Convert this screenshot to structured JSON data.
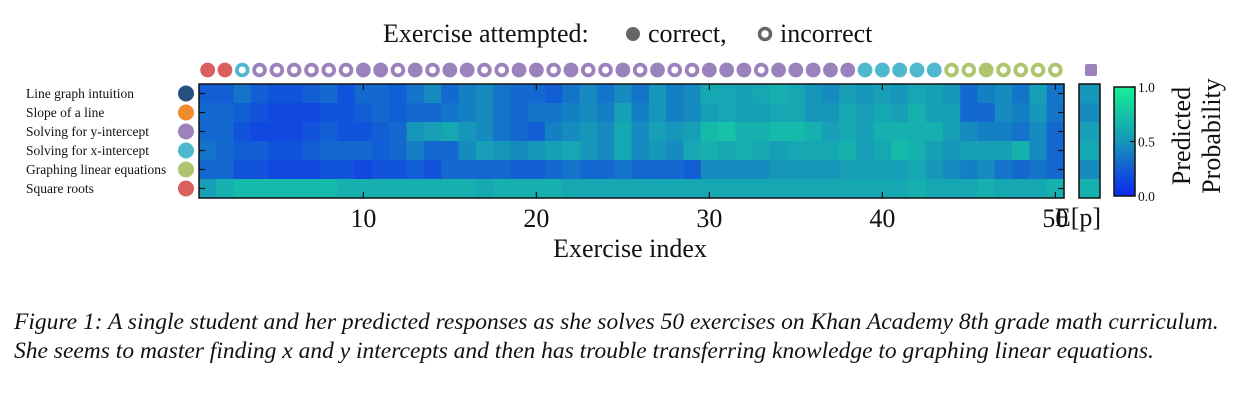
{
  "chart_data": {
    "type": "heatmap",
    "title_prefix": "Exercise attempted:",
    "legend": [
      {
        "label": "correct,",
        "style": "filled"
      },
      {
        "label": "incorrect",
        "style": "ring"
      }
    ],
    "xlabel": "Exercise index",
    "x_ticks": [
      10,
      20,
      30,
      40,
      50
    ],
    "x_range": [
      1,
      50
    ],
    "expected_column_label": "E[p]",
    "colorbar": {
      "label_line1": "Predicted",
      "label_line2": "Probability",
      "ticks": [
        1.0,
        0.5,
        0.0
      ],
      "tick_labels": [
        "1.0",
        "0.5",
        "0.0"
      ],
      "range": [
        0,
        1
      ]
    },
    "colors": {
      "Line graph intuition": "#27507e",
      "Slope of a line": "#f08a2c",
      "Solving for y-intercept": "#9b82bc",
      "Solving for x-intercept": "#4fb8cf",
      "Graphing linear equations": "#aec46e",
      "Square roots": "#d9605c"
    },
    "skills": [
      "Line graph intuition",
      "Slope of a line",
      "Solving for y-intercept",
      "Solving for x-intercept",
      "Graphing linear equations",
      "Square roots"
    ],
    "attempts": [
      {
        "skill": 5,
        "correct": true
      },
      {
        "skill": 5,
        "correct": true
      },
      {
        "skill": 3,
        "correct": false
      },
      {
        "skill": 2,
        "correct": false
      },
      {
        "skill": 2,
        "correct": false
      },
      {
        "skill": 2,
        "correct": false
      },
      {
        "skill": 2,
        "correct": false
      },
      {
        "skill": 2,
        "correct": false
      },
      {
        "skill": 2,
        "correct": false
      },
      {
        "skill": 2,
        "correct": true
      },
      {
        "skill": 2,
        "correct": true
      },
      {
        "skill": 2,
        "correct": false
      },
      {
        "skill": 2,
        "correct": true
      },
      {
        "skill": 2,
        "correct": false
      },
      {
        "skill": 2,
        "correct": true
      },
      {
        "skill": 2,
        "correct": true
      },
      {
        "skill": 2,
        "correct": false
      },
      {
        "skill": 2,
        "correct": false
      },
      {
        "skill": 2,
        "correct": true
      },
      {
        "skill": 2,
        "correct": true
      },
      {
        "skill": 2,
        "correct": false
      },
      {
        "skill": 2,
        "correct": true
      },
      {
        "skill": 2,
        "correct": false
      },
      {
        "skill": 2,
        "correct": false
      },
      {
        "skill": 2,
        "correct": true
      },
      {
        "skill": 2,
        "correct": false
      },
      {
        "skill": 2,
        "correct": true
      },
      {
        "skill": 2,
        "correct": false
      },
      {
        "skill": 2,
        "correct": false
      },
      {
        "skill": 2,
        "correct": true
      },
      {
        "skill": 2,
        "correct": true
      },
      {
        "skill": 2,
        "correct": true
      },
      {
        "skill": 2,
        "correct": false
      },
      {
        "skill": 2,
        "correct": true
      },
      {
        "skill": 2,
        "correct": true
      },
      {
        "skill": 2,
        "correct": true
      },
      {
        "skill": 2,
        "correct": true
      },
      {
        "skill": 2,
        "correct": true
      },
      {
        "skill": 3,
        "correct": true
      },
      {
        "skill": 3,
        "correct": true
      },
      {
        "skill": 3,
        "correct": true
      },
      {
        "skill": 3,
        "correct": true
      },
      {
        "skill": 3,
        "correct": true
      },
      {
        "skill": 4,
        "correct": false
      },
      {
        "skill": 4,
        "correct": false
      },
      {
        "skill": 4,
        "correct": true
      },
      {
        "skill": 4,
        "correct": false
      },
      {
        "skill": 4,
        "correct": false
      },
      {
        "skill": 4,
        "correct": false
      },
      {
        "skill": 4,
        "correct": false
      }
    ],
    "probabilities": [
      [
        0.25,
        0.25,
        0.35,
        0.25,
        0.2,
        0.2,
        0.25,
        0.3,
        0.2,
        0.3,
        0.3,
        0.25,
        0.35,
        0.45,
        0.3,
        0.4,
        0.45,
        0.35,
        0.3,
        0.3,
        0.25,
        0.35,
        0.45,
        0.35,
        0.45,
        0.35,
        0.5,
        0.4,
        0.45,
        0.6,
        0.6,
        0.55,
        0.6,
        0.65,
        0.6,
        0.5,
        0.45,
        0.55,
        0.5,
        0.55,
        0.5,
        0.6,
        0.55,
        0.5,
        0.3,
        0.4,
        0.45,
        0.35,
        0.55,
        0.35
      ],
      [
        0.3,
        0.3,
        0.25,
        0.2,
        0.15,
        0.15,
        0.15,
        0.2,
        0.2,
        0.25,
        0.3,
        0.25,
        0.3,
        0.3,
        0.35,
        0.4,
        0.45,
        0.35,
        0.3,
        0.35,
        0.35,
        0.4,
        0.45,
        0.4,
        0.55,
        0.4,
        0.5,
        0.4,
        0.45,
        0.55,
        0.6,
        0.55,
        0.55,
        0.6,
        0.6,
        0.5,
        0.5,
        0.6,
        0.55,
        0.6,
        0.55,
        0.65,
        0.55,
        0.55,
        0.3,
        0.3,
        0.45,
        0.4,
        0.5,
        0.35
      ],
      [
        0.3,
        0.3,
        0.2,
        0.15,
        0.15,
        0.15,
        0.2,
        0.25,
        0.2,
        0.2,
        0.25,
        0.3,
        0.5,
        0.55,
        0.6,
        0.5,
        0.45,
        0.35,
        0.3,
        0.25,
        0.4,
        0.45,
        0.5,
        0.45,
        0.6,
        0.45,
        0.55,
        0.5,
        0.55,
        0.7,
        0.75,
        0.65,
        0.65,
        0.7,
        0.7,
        0.65,
        0.55,
        0.6,
        0.55,
        0.65,
        0.65,
        0.65,
        0.65,
        0.55,
        0.45,
        0.4,
        0.4,
        0.35,
        0.45,
        0.3
      ],
      [
        0.35,
        0.3,
        0.25,
        0.25,
        0.2,
        0.2,
        0.25,
        0.3,
        0.3,
        0.3,
        0.25,
        0.3,
        0.4,
        0.3,
        0.3,
        0.45,
        0.55,
        0.5,
        0.45,
        0.5,
        0.55,
        0.6,
        0.5,
        0.45,
        0.6,
        0.45,
        0.5,
        0.45,
        0.6,
        0.65,
        0.6,
        0.65,
        0.6,
        0.55,
        0.6,
        0.6,
        0.6,
        0.65,
        0.55,
        0.6,
        0.7,
        0.65,
        0.55,
        0.5,
        0.55,
        0.55,
        0.55,
        0.65,
        0.45,
        0.3
      ],
      [
        0.3,
        0.3,
        0.2,
        0.2,
        0.15,
        0.15,
        0.15,
        0.2,
        0.2,
        0.15,
        0.2,
        0.2,
        0.25,
        0.2,
        0.3,
        0.3,
        0.3,
        0.3,
        0.25,
        0.25,
        0.3,
        0.35,
        0.3,
        0.3,
        0.35,
        0.3,
        0.3,
        0.3,
        0.25,
        0.45,
        0.45,
        0.45,
        0.45,
        0.5,
        0.5,
        0.5,
        0.5,
        0.55,
        0.55,
        0.55,
        0.55,
        0.6,
        0.5,
        0.45,
        0.4,
        0.45,
        0.35,
        0.3,
        0.35,
        0.3
      ],
      [
        0.55,
        0.65,
        0.7,
        0.7,
        0.7,
        0.7,
        0.7,
        0.7,
        0.65,
        0.65,
        0.65,
        0.65,
        0.65,
        0.65,
        0.65,
        0.65,
        0.6,
        0.65,
        0.65,
        0.65,
        0.65,
        0.6,
        0.6,
        0.6,
        0.6,
        0.6,
        0.6,
        0.6,
        0.6,
        0.6,
        0.6,
        0.6,
        0.6,
        0.6,
        0.6,
        0.6,
        0.6,
        0.6,
        0.6,
        0.6,
        0.6,
        0.65,
        0.6,
        0.6,
        0.6,
        0.65,
        0.6,
        0.6,
        0.6,
        0.65
      ]
    ],
    "expected": [
      0.5,
      0.45,
      0.55,
      0.6,
      0.45,
      0.65
    ],
    "attempt_marker_after_last": {
      "skill": 2,
      "shape": "square"
    }
  },
  "caption": "Figure 1: A single student and her predicted responses as she solves 50 exercises on Khan Academy 8th grade math curriculum. She seems to master finding x and y intercepts and then has trouble transferring knowledge to graphing linear equations."
}
